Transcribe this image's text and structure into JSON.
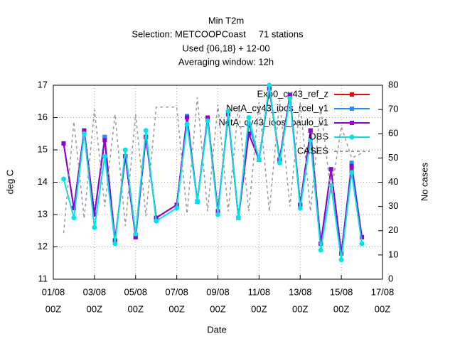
{
  "chart_data": {
    "type": "line",
    "title": [
      "Min T2m",
      "Selection: METCOOPCoast     71 stations",
      "Used {06,18} + 12-00",
      "Averaging window: 12h"
    ],
    "xlabel": "Date",
    "ylabel": "deg C",
    "y2label": "No cases",
    "x": [
      "01/08 12Z",
      "02/08 00Z",
      "02/08 12Z",
      "03/08 00Z",
      "03/08 12Z",
      "04/08 00Z",
      "04/08 12Z",
      "05/08 00Z",
      "05/08 12Z",
      "06/08 00Z",
      "07/08 00Z",
      "07/08 12Z",
      "08/08 00Z",
      "08/08 12Z",
      "09/08 00Z",
      "09/08 12Z",
      "10/08 00Z",
      "10/08 12Z",
      "11/08 00Z",
      "11/08 12Z",
      "12/08 00Z",
      "12/08 12Z",
      "13/08 00Z",
      "13/08 12Z",
      "14/08 00Z",
      "14/08 12Z",
      "15/08 00Z",
      "15/08 12Z",
      "16/08 00Z"
    ],
    "xlim": [
      "01/08 00Z",
      "17/08 00Z"
    ],
    "xticks": [
      {
        "date": "01/08",
        "hour": "00Z"
      },
      {
        "date": "03/08",
        "hour": "00Z"
      },
      {
        "date": "05/08",
        "hour": "00Z"
      },
      {
        "date": "07/08",
        "hour": "00Z"
      },
      {
        "date": "09/08",
        "hour": "00Z"
      },
      {
        "date": "11/08",
        "hour": "00Z"
      },
      {
        "date": "13/08",
        "hour": "00Z"
      },
      {
        "date": "15/08",
        "hour": "00Z"
      },
      {
        "date": "17/08",
        "hour": "00Z"
      }
    ],
    "ylim": [
      11,
      17
    ],
    "yticks": [
      11,
      12,
      13,
      14,
      15,
      16,
      17
    ],
    "y2lim": [
      0,
      80
    ],
    "y2ticks": [
      0,
      10,
      20,
      30,
      40,
      50,
      60,
      70,
      80
    ],
    "grid": true,
    "legend": "top-right",
    "series": [
      {
        "name": "Exp0_cy43_ref_z",
        "color": "#ff0000",
        "marker": "square",
        "values": [
          15.2,
          13.2,
          15.6,
          13.0,
          15.4,
          12.2,
          14.8,
          12.3,
          15.4,
          12.9,
          13.3,
          16.0,
          13.4,
          16.0,
          13.1,
          16.1,
          12.9,
          15.5,
          14.7,
          16.9,
          14.7,
          16.7,
          13.3,
          15.6,
          12.1,
          14.4,
          11.8,
          14.4,
          12.3
        ]
      },
      {
        "name": "NetA_cy43_ioos_rcel_v1",
        "color": "#1e90ff",
        "marker": "square",
        "values": [
          15.2,
          13.2,
          15.6,
          13.0,
          15.4,
          12.2,
          14.8,
          12.3,
          15.4,
          12.9,
          13.3,
          16.05,
          13.4,
          16.0,
          13.1,
          16.1,
          12.9,
          15.8,
          14.7,
          16.9,
          14.7,
          16.7,
          13.3,
          15.6,
          12.1,
          14.4,
          11.8,
          14.6,
          12.3
        ]
      },
      {
        "name": "NetA_cy43_ioos_paulo_v1",
        "color": "#9400d3",
        "marker": "square",
        "values": [
          15.2,
          13.2,
          15.6,
          13.0,
          15.3,
          12.2,
          14.8,
          12.3,
          15.4,
          12.9,
          13.3,
          16.0,
          13.4,
          16.0,
          13.1,
          16.1,
          12.9,
          15.5,
          14.7,
          16.9,
          14.7,
          16.7,
          13.3,
          15.6,
          12.1,
          14.4,
          11.8,
          14.5,
          12.3
        ]
      },
      {
        "name": "OBS",
        "color": "#00e5e5",
        "marker": "circle",
        "values": [
          14.1,
          12.9,
          15.5,
          12.6,
          14.8,
          12.1,
          15.0,
          12.4,
          15.6,
          12.8,
          13.2,
          15.8,
          13.4,
          15.9,
          13.0,
          16.2,
          12.9,
          16.0,
          14.7,
          17.0,
          14.6,
          16.6,
          13.2,
          15.3,
          11.9,
          13.9,
          11.6,
          14.3,
          12.1
        ]
      },
      {
        "name": "CASES",
        "color": "#999999",
        "axis": "y2",
        "dash": true,
        "values": [
          19,
          65,
          25,
          70,
          30,
          68,
          22,
          68,
          26,
          71,
          71,
          27,
          75,
          28,
          72,
          28,
          71,
          28,
          73,
          28,
          74,
          30,
          73,
          28,
          71,
          35,
          63,
          50,
          52
        ]
      }
    ]
  }
}
